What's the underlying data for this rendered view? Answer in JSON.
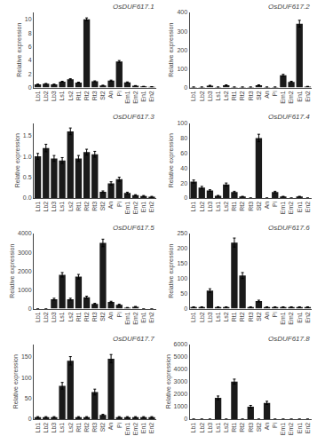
{
  "chart_data": [
    {
      "type": "bar",
      "title": "OsDUF617.1",
      "ylabel": "Relative expression",
      "categories": [
        "Lb1",
        "Lb2",
        "Lb3",
        "Ls1",
        "Ls2",
        "Rt1",
        "Rt2",
        "Rt3",
        "St2",
        "An",
        "Pi",
        "Em1",
        "Em2",
        "En1",
        "En2"
      ],
      "values": [
        0.45,
        0.55,
        0.45,
        0.85,
        1.2,
        0.72,
        10.0,
        0.9,
        0.3,
        1.0,
        3.8,
        0.75,
        0.25,
        0.15,
        0.1
      ],
      "errors": [
        0.04,
        0.04,
        0.04,
        0.06,
        0.08,
        0.06,
        0.2,
        0.07,
        0.03,
        0.08,
        0.15,
        0.06,
        0.03,
        0.02,
        0.01
      ],
      "color": "#1a1a1a",
      "ylim": [
        0,
        11
      ],
      "yticks": [
        0,
        2,
        4,
        6,
        8,
        10
      ],
      "grid": false
    },
    {
      "type": "bar",
      "title": "OsDUF617.2",
      "ylabel": "Relative expression",
      "categories": [
        "Lb1",
        "Lb2",
        "Lb3",
        "Ls1",
        "Ls2",
        "Rt1",
        "Rt2",
        "Rt3",
        "St2",
        "An",
        "Pi",
        "Em1",
        "Em2",
        "En1",
        "En2"
      ],
      "values": [
        2,
        2,
        10,
        2,
        12,
        2,
        2,
        2,
        12,
        2,
        2,
        65,
        30,
        340,
        5
      ],
      "errors": [
        0.5,
        0.5,
        1.5,
        0.5,
        2.0,
        0.5,
        0.5,
        0.5,
        2.0,
        0.5,
        0.5,
        5.0,
        3.0,
        18.0,
        1.0
      ],
      "color": "#1a1a1a",
      "ylim": [
        0,
        400
      ],
      "yticks": [
        0,
        100,
        200,
        300,
        400
      ],
      "grid": false
    },
    {
      "type": "bar",
      "title": "OsDUF617.3",
      "ylabel": "Relative expression",
      "categories": [
        "Lb1",
        "Lb2",
        "Lb3",
        "Ls1",
        "Ls2",
        "Rt1",
        "Rt2",
        "Rt3",
        "St2",
        "An",
        "Pi",
        "Em1",
        "Em2",
        "En1",
        "En2"
      ],
      "values": [
        1.0,
        1.2,
        0.95,
        0.9,
        1.6,
        0.95,
        1.1,
        1.05,
        0.15,
        0.35,
        0.45,
        0.12,
        0.07,
        0.05,
        0.03
      ],
      "errors": [
        0.07,
        0.09,
        0.07,
        0.07,
        0.08,
        0.07,
        0.07,
        0.07,
        0.02,
        0.04,
        0.05,
        0.02,
        0.01,
        0.01,
        0.01
      ],
      "color": "#1a1a1a",
      "ylim": [
        0,
        1.8
      ],
      "yticks": [
        {
          "value": 0,
          "label": "0.0"
        },
        0.5,
        {
          "value": 1,
          "label": "1.0"
        },
        1.5
      ],
      "grid": false
    },
    {
      "type": "bar",
      "title": "OsDUF617.4",
      "ylabel": "Relative expression",
      "categories": [
        "Lb1",
        "Lb2",
        "Lb3",
        "Ls1",
        "Ls2",
        "Rt1",
        "Rt2",
        "Rt3",
        "St2",
        "An",
        "Pi",
        "Em1",
        "Em2",
        "En1",
        "En2"
      ],
      "values": [
        22,
        14,
        10,
        3,
        18,
        8,
        2,
        0,
        80,
        0,
        8,
        2,
        0,
        2,
        0
      ],
      "errors": [
        2.0,
        1.5,
        1.0,
        0.5,
        2.0,
        1.0,
        0.3,
        0,
        5.0,
        0,
        1.0,
        0.3,
        0,
        0.3,
        0
      ],
      "color": "#1a1a1a",
      "ylim": [
        0,
        100
      ],
      "yticks": [
        0,
        20,
        40,
        60,
        80,
        100
      ],
      "grid": false
    },
    {
      "type": "bar",
      "title": "OsDUF617.5",
      "ylabel": "Relative expression",
      "categories": [
        "Lb1",
        "Lb2",
        "Lb3",
        "Ls1",
        "Ls2",
        "Rt1",
        "Rt2",
        "Rt3",
        "St2",
        "An",
        "Pi",
        "Em1",
        "Em2",
        "En1",
        "En2"
      ],
      "values": [
        0,
        0,
        500,
        1800,
        500,
        1700,
        600,
        250,
        3500,
        350,
        200,
        50,
        100,
        0,
        0
      ],
      "errors": [
        0,
        0,
        50,
        120,
        50,
        120,
        60,
        30,
        200,
        40,
        30,
        10,
        15,
        0,
        0
      ],
      "color": "#1a1a1a",
      "ylim": [
        0,
        4000
      ],
      "yticks": [
        0,
        1000,
        2000,
        3000,
        4000
      ],
      "grid": false
    },
    {
      "type": "bar",
      "title": "OsDUF617.6",
      "ylabel": "Relative expression",
      "categories": [
        "Lb1",
        "Lb2",
        "Lb3",
        "Ls1",
        "Ls2",
        "Rt1",
        "Rt2",
        "Rt3",
        "St2",
        "An",
        "Pi",
        "Em1",
        "Em2",
        "En1",
        "En2"
      ],
      "values": [
        5,
        5,
        60,
        5,
        5,
        220,
        110,
        5,
        25,
        5,
        5,
        5,
        5,
        5,
        5
      ],
      "errors": [
        1,
        1,
        6,
        1,
        1,
        15,
        10,
        1,
        3,
        1,
        1,
        1,
        1,
        1,
        1
      ],
      "color": "#1a1a1a",
      "ylim": [
        0,
        250
      ],
      "yticks": [
        0,
        50,
        100,
        150,
        200,
        250
      ],
      "grid": false
    },
    {
      "type": "bar",
      "title": "OsDUF617.7",
      "ylabel": "Relative expression",
      "categories": [
        "Lb1",
        "Lb2",
        "Lb3",
        "Ls1",
        "Ls2",
        "Rt1",
        "Rt2",
        "Rt3",
        "St2",
        "An",
        "Pi",
        "Em1",
        "Em2",
        "En1",
        "En2"
      ],
      "values": [
        5,
        5,
        5,
        80,
        140,
        5,
        5,
        65,
        10,
        145,
        5,
        5,
        5,
        5,
        5
      ],
      "errors": [
        1,
        1,
        1,
        8,
        10,
        1,
        1,
        7,
        1.5,
        10,
        1,
        1,
        1,
        1,
        1
      ],
      "color": "#1a1a1a",
      "ylim": [
        0,
        180
      ],
      "yticks": [
        0,
        50,
        100,
        150
      ],
      "grid": false
    },
    {
      "type": "bar",
      "title": "OsDUF617.8",
      "ylabel": "Relative expression",
      "categories": [
        "Lb1",
        "Lb2",
        "Lb3",
        "Ls1",
        "Ls2",
        "Rt1",
        "Rt2",
        "Rt3",
        "St2",
        "An",
        "Pi",
        "Em1",
        "Em2",
        "En1",
        "En2"
      ],
      "values": [
        0,
        0,
        0,
        1700,
        0,
        3000,
        0,
        1000,
        0,
        1300,
        0,
        0,
        0,
        0,
        0
      ],
      "errors": [
        0,
        0,
        0,
        150,
        0,
        200,
        0,
        100,
        0,
        130,
        0,
        0,
        0,
        0,
        0
      ],
      "color": "#1a1a1a",
      "ylim": [
        0,
        6000
      ],
      "yticks": [
        0,
        1000,
        2000,
        3000,
        4000,
        5000,
        6000
      ],
      "grid": false
    }
  ]
}
